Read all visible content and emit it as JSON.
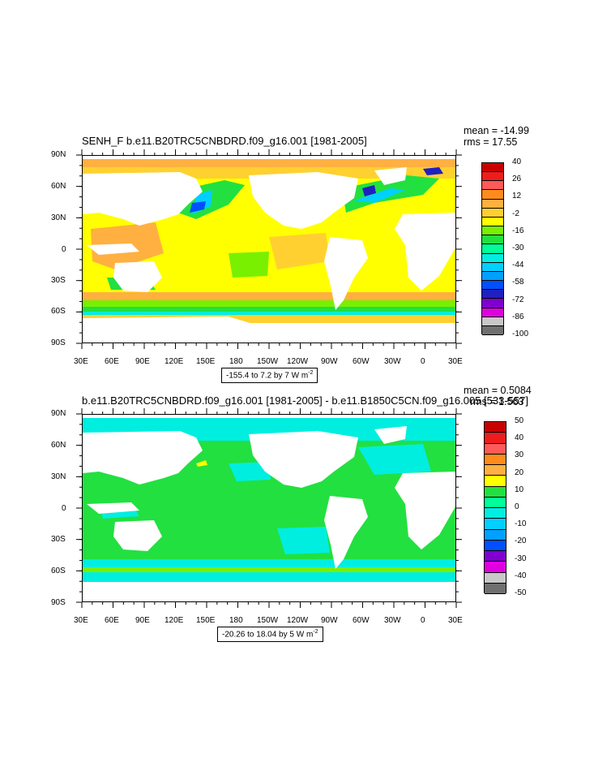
{
  "panels": [
    {
      "title": "SENH_F b.e11.B20TRC5CNBDRD.f09_g16.001 [1981-2005]",
      "mean": "mean = -14.99",
      "rms": "rms = 17.55",
      "info_prefix": "-155.4 to 7.2 by 7  W m",
      "info_exp": "-2",
      "colorbar": {
        "labels": [
          "40",
          "26",
          "12",
          "-2",
          "-16",
          "-30",
          "-44",
          "-58",
          "-72",
          "-86",
          "-100"
        ],
        "colors": [
          "#c80000",
          "#ee1d1d",
          "#ff5a5a",
          "#ff8c1a",
          "#ffb040",
          "#ffd030",
          "#ffff00",
          "#78f000",
          "#22e040",
          "#00ff99",
          "#00eee0",
          "#00d0ff",
          "#00a0ff",
          "#0050ff",
          "#2020c0",
          "#8000d0",
          "#e000e0",
          "#c8c8c8",
          "#707070"
        ]
      }
    },
    {
      "title": "b.e11.B20TRC5CNBDRD.f09_g16.001 [1981-2005] - b.e11.B1850C5CN.f09_g16.005 [533-557]",
      "mean": "mean = 0.5084",
      "rms": "rms = 1.563",
      "info_prefix": "-20.26 to 18.04 by 5  W m",
      "info_exp": "-2",
      "colorbar": {
        "labels": [
          "50",
          "40",
          "30",
          "20",
          "10",
          "0",
          "-10",
          "-20",
          "-30",
          "-40",
          "-50"
        ],
        "colors": [
          "#c80000",
          "#ee1d1d",
          "#ff5a5a",
          "#ff8c1a",
          "#ffb040",
          "#ffff00",
          "#22e040",
          "#00ff99",
          "#00eee0",
          "#00d0ff",
          "#00a0ff",
          "#0050ff",
          "#8000d0",
          "#e000e0",
          "#c8c8c8",
          "#707070"
        ]
      }
    }
  ],
  "axes": {
    "lat_labels": [
      "90N",
      "60N",
      "30N",
      "0",
      "30S",
      "60S",
      "90S"
    ],
    "lon_labels": [
      "30E",
      "60E",
      "90E",
      "120E",
      "150E",
      "180",
      "150W",
      "120W",
      "90W",
      "60W",
      "30W",
      "0",
      "30E"
    ]
  }
}
